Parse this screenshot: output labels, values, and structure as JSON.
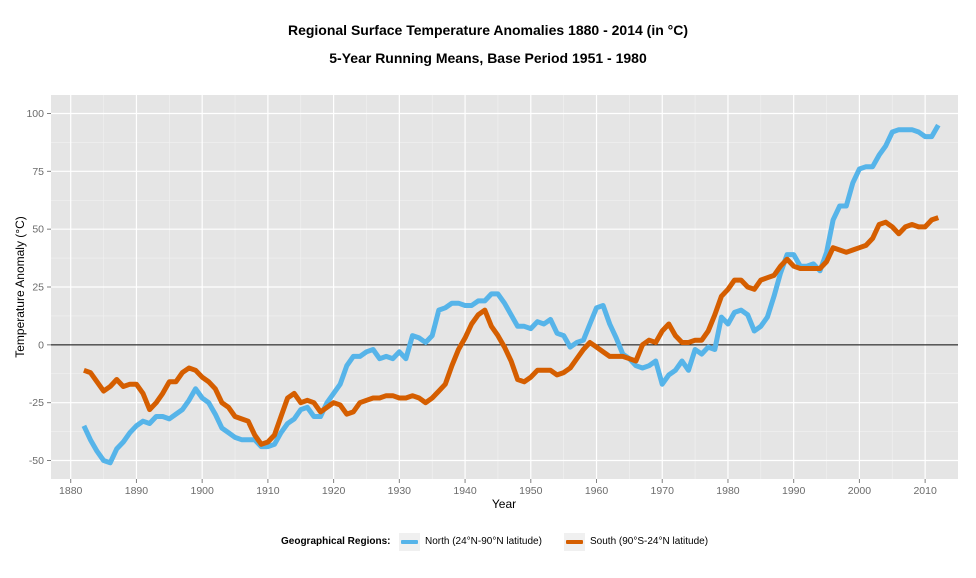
{
  "chart_data": {
    "type": "line",
    "title": "Regional Surface Temperature Anomalies 1880 - 2014 (in °C)",
    "subtitle": "5-Year Running Means, Base Period 1951 - 1980",
    "xlabel": "Year",
    "ylabel": "Temperature Anomaly (°C)",
    "xlim": [
      1877,
      2015
    ],
    "ylim": [
      -58,
      108
    ],
    "x_ticks": [
      1880,
      1890,
      1900,
      1910,
      1920,
      1930,
      1940,
      1950,
      1960,
      1970,
      1980,
      1990,
      2000,
      2010
    ],
    "y_ticks": [
      -50,
      -25,
      0,
      25,
      50,
      75,
      100
    ],
    "reference_line": 0,
    "grid": true,
    "legend": {
      "title": "Geographical Regions:",
      "position": "bottom"
    },
    "series": [
      {
        "name": "North (24°N-90°N latitude)",
        "color": "#56B4E9",
        "points": [
          [
            1882,
            -35
          ],
          [
            1883,
            -41
          ],
          [
            1884,
            -46
          ],
          [
            1885,
            -50
          ],
          [
            1886,
            -51
          ],
          [
            1887,
            -45
          ],
          [
            1888,
            -42
          ],
          [
            1889,
            -38
          ],
          [
            1890,
            -35
          ],
          [
            1891,
            -33
          ],
          [
            1892,
            -34
          ],
          [
            1893,
            -31
          ],
          [
            1894,
            -31
          ],
          [
            1895,
            -32
          ],
          [
            1896,
            -30
          ],
          [
            1897,
            -28
          ],
          [
            1898,
            -24
          ],
          [
            1899,
            -19
          ],
          [
            1900,
            -23
          ],
          [
            1901,
            -25
          ],
          [
            1902,
            -30
          ],
          [
            1903,
            -36
          ],
          [
            1904,
            -38
          ],
          [
            1905,
            -40
          ],
          [
            1906,
            -41
          ],
          [
            1907,
            -41
          ],
          [
            1908,
            -41
          ],
          [
            1909,
            -44
          ],
          [
            1910,
            -44
          ],
          [
            1911,
            -43
          ],
          [
            1912,
            -38
          ],
          [
            1913,
            -34
          ],
          [
            1914,
            -32
          ],
          [
            1915,
            -28
          ],
          [
            1916,
            -27
          ],
          [
            1917,
            -31
          ],
          [
            1918,
            -31
          ],
          [
            1919,
            -25
          ],
          [
            1920,
            -21
          ],
          [
            1921,
            -17
          ],
          [
            1922,
            -9
          ],
          [
            1923,
            -5
          ],
          [
            1924,
            -5
          ],
          [
            1925,
            -3
          ],
          [
            1926,
            -2
          ],
          [
            1927,
            -6
          ],
          [
            1928,
            -5
          ],
          [
            1929,
            -6
          ],
          [
            1930,
            -3
          ],
          [
            1931,
            -6
          ],
          [
            1932,
            4
          ],
          [
            1933,
            3
          ],
          [
            1934,
            1
          ],
          [
            1935,
            4
          ],
          [
            1936,
            15
          ],
          [
            1937,
            16
          ],
          [
            1938,
            18
          ],
          [
            1939,
            18
          ],
          [
            1940,
            17
          ],
          [
            1941,
            17
          ],
          [
            1942,
            19
          ],
          [
            1943,
            19
          ],
          [
            1944,
            22
          ],
          [
            1945,
            22
          ],
          [
            1946,
            18
          ],
          [
            1947,
            13
          ],
          [
            1948,
            8
          ],
          [
            1949,
            8
          ],
          [
            1950,
            7
          ],
          [
            1951,
            10
          ],
          [
            1952,
            9
          ],
          [
            1953,
            11
          ],
          [
            1954,
            5
          ],
          [
            1955,
            4
          ],
          [
            1956,
            -1
          ],
          [
            1957,
            1
          ],
          [
            1958,
            2
          ],
          [
            1959,
            9
          ],
          [
            1960,
            16
          ],
          [
            1961,
            17
          ],
          [
            1962,
            9
          ],
          [
            1963,
            3
          ],
          [
            1964,
            -4
          ],
          [
            1965,
            -6
          ],
          [
            1966,
            -9
          ],
          [
            1967,
            -10
          ],
          [
            1968,
            -9
          ],
          [
            1969,
            -7
          ],
          [
            1970,
            -17
          ],
          [
            1971,
            -13
          ],
          [
            1972,
            -11
          ],
          [
            1973,
            -7
          ],
          [
            1974,
            -11
          ],
          [
            1975,
            -2
          ],
          [
            1976,
            -4
          ],
          [
            1977,
            -1
          ],
          [
            1978,
            -2
          ],
          [
            1979,
            12
          ],
          [
            1980,
            9
          ],
          [
            1981,
            14
          ],
          [
            1982,
            15
          ],
          [
            1983,
            13
          ],
          [
            1984,
            6
          ],
          [
            1985,
            8
          ],
          [
            1986,
            12
          ],
          [
            1987,
            21
          ],
          [
            1988,
            31
          ],
          [
            1989,
            39
          ],
          [
            1990,
            39
          ],
          [
            1991,
            34
          ],
          [
            1992,
            34
          ],
          [
            1993,
            35
          ],
          [
            1994,
            32
          ],
          [
            1995,
            40
          ],
          [
            1996,
            54
          ],
          [
            1997,
            60
          ],
          [
            1998,
            60
          ],
          [
            1999,
            70
          ],
          [
            2000,
            76
          ],
          [
            2001,
            77
          ],
          [
            2002,
            77
          ],
          [
            2003,
            82
          ],
          [
            2004,
            86
          ],
          [
            2005,
            92
          ],
          [
            2006,
            93
          ],
          [
            2007,
            93
          ],
          [
            2008,
            93
          ],
          [
            2009,
            92
          ],
          [
            2010,
            90
          ],
          [
            2011,
            90
          ],
          [
            2012,
            95
          ]
        ]
      },
      {
        "name": "South (90°S-24°N latitude)",
        "color": "#D55E00",
        "points": [
          [
            1882,
            -11
          ],
          [
            1883,
            -12
          ],
          [
            1884,
            -16
          ],
          [
            1885,
            -20
          ],
          [
            1886,
            -18
          ],
          [
            1887,
            -15
          ],
          [
            1888,
            -18
          ],
          [
            1889,
            -17
          ],
          [
            1890,
            -17
          ],
          [
            1891,
            -21
          ],
          [
            1892,
            -28
          ],
          [
            1893,
            -25
          ],
          [
            1894,
            -21
          ],
          [
            1895,
            -16
          ],
          [
            1896,
            -16
          ],
          [
            1897,
            -12
          ],
          [
            1898,
            -10
          ],
          [
            1899,
            -11
          ],
          [
            1900,
            -14
          ],
          [
            1901,
            -16
          ],
          [
            1902,
            -19
          ],
          [
            1903,
            -25
          ],
          [
            1904,
            -27
          ],
          [
            1905,
            -31
          ],
          [
            1906,
            -32
          ],
          [
            1907,
            -33
          ],
          [
            1908,
            -39
          ],
          [
            1909,
            -43
          ],
          [
            1910,
            -42
          ],
          [
            1911,
            -39
          ],
          [
            1912,
            -31
          ],
          [
            1913,
            -23
          ],
          [
            1914,
            -21
          ],
          [
            1915,
            -25
          ],
          [
            1916,
            -24
          ],
          [
            1917,
            -25
          ],
          [
            1918,
            -29
          ],
          [
            1919,
            -27
          ],
          [
            1920,
            -25
          ],
          [
            1921,
            -26
          ],
          [
            1922,
            -30
          ],
          [
            1923,
            -29
          ],
          [
            1924,
            -25
          ],
          [
            1925,
            -24
          ],
          [
            1926,
            -23
          ],
          [
            1927,
            -23
          ],
          [
            1928,
            -22
          ],
          [
            1929,
            -22
          ],
          [
            1930,
            -23
          ],
          [
            1931,
            -23
          ],
          [
            1932,
            -22
          ],
          [
            1933,
            -23
          ],
          [
            1934,
            -25
          ],
          [
            1935,
            -23
          ],
          [
            1936,
            -20
          ],
          [
            1937,
            -17
          ],
          [
            1938,
            -9
          ],
          [
            1939,
            -2
          ],
          [
            1940,
            3
          ],
          [
            1941,
            9
          ],
          [
            1942,
            13
          ],
          [
            1943,
            15
          ],
          [
            1944,
            8
          ],
          [
            1945,
            4
          ],
          [
            1946,
            -1
          ],
          [
            1947,
            -7
          ],
          [
            1948,
            -15
          ],
          [
            1949,
            -16
          ],
          [
            1950,
            -14
          ],
          [
            1951,
            -11
          ],
          [
            1952,
            -11
          ],
          [
            1953,
            -11
          ],
          [
            1954,
            -13
          ],
          [
            1955,
            -12
          ],
          [
            1956,
            -10
          ],
          [
            1957,
            -6
          ],
          [
            1958,
            -2
          ],
          [
            1959,
            1
          ],
          [
            1960,
            -1
          ],
          [
            1961,
            -3
          ],
          [
            1962,
            -5
          ],
          [
            1963,
            -5
          ],
          [
            1964,
            -5
          ],
          [
            1965,
            -6
          ],
          [
            1966,
            -7
          ],
          [
            1967,
            0
          ],
          [
            1968,
            2
          ],
          [
            1969,
            1
          ],
          [
            1970,
            6
          ],
          [
            1971,
            9
          ],
          [
            1972,
            4
          ],
          [
            1973,
            1
          ],
          [
            1974,
            1
          ],
          [
            1975,
            2
          ],
          [
            1976,
            2
          ],
          [
            1977,
            6
          ],
          [
            1978,
            13
          ],
          [
            1979,
            21
          ],
          [
            1980,
            24
          ],
          [
            1981,
            28
          ],
          [
            1982,
            28
          ],
          [
            1983,
            25
          ],
          [
            1984,
            24
          ],
          [
            1985,
            28
          ],
          [
            1986,
            29
          ],
          [
            1987,
            30
          ],
          [
            1988,
            34
          ],
          [
            1989,
            37
          ],
          [
            1990,
            34
          ],
          [
            1991,
            33
          ],
          [
            1992,
            33
          ],
          [
            1993,
            33
          ],
          [
            1994,
            33
          ],
          [
            1995,
            36
          ],
          [
            1996,
            42
          ],
          [
            1997,
            41
          ],
          [
            1998,
            40
          ],
          [
            1999,
            41
          ],
          [
            2000,
            42
          ],
          [
            2001,
            43
          ],
          [
            2002,
            46
          ],
          [
            2003,
            52
          ],
          [
            2004,
            53
          ],
          [
            2005,
            51
          ],
          [
            2006,
            48
          ],
          [
            2007,
            51
          ],
          [
            2008,
            52
          ],
          [
            2009,
            51
          ],
          [
            2010,
            51
          ],
          [
            2011,
            54
          ],
          [
            2012,
            55
          ]
        ]
      }
    ]
  }
}
